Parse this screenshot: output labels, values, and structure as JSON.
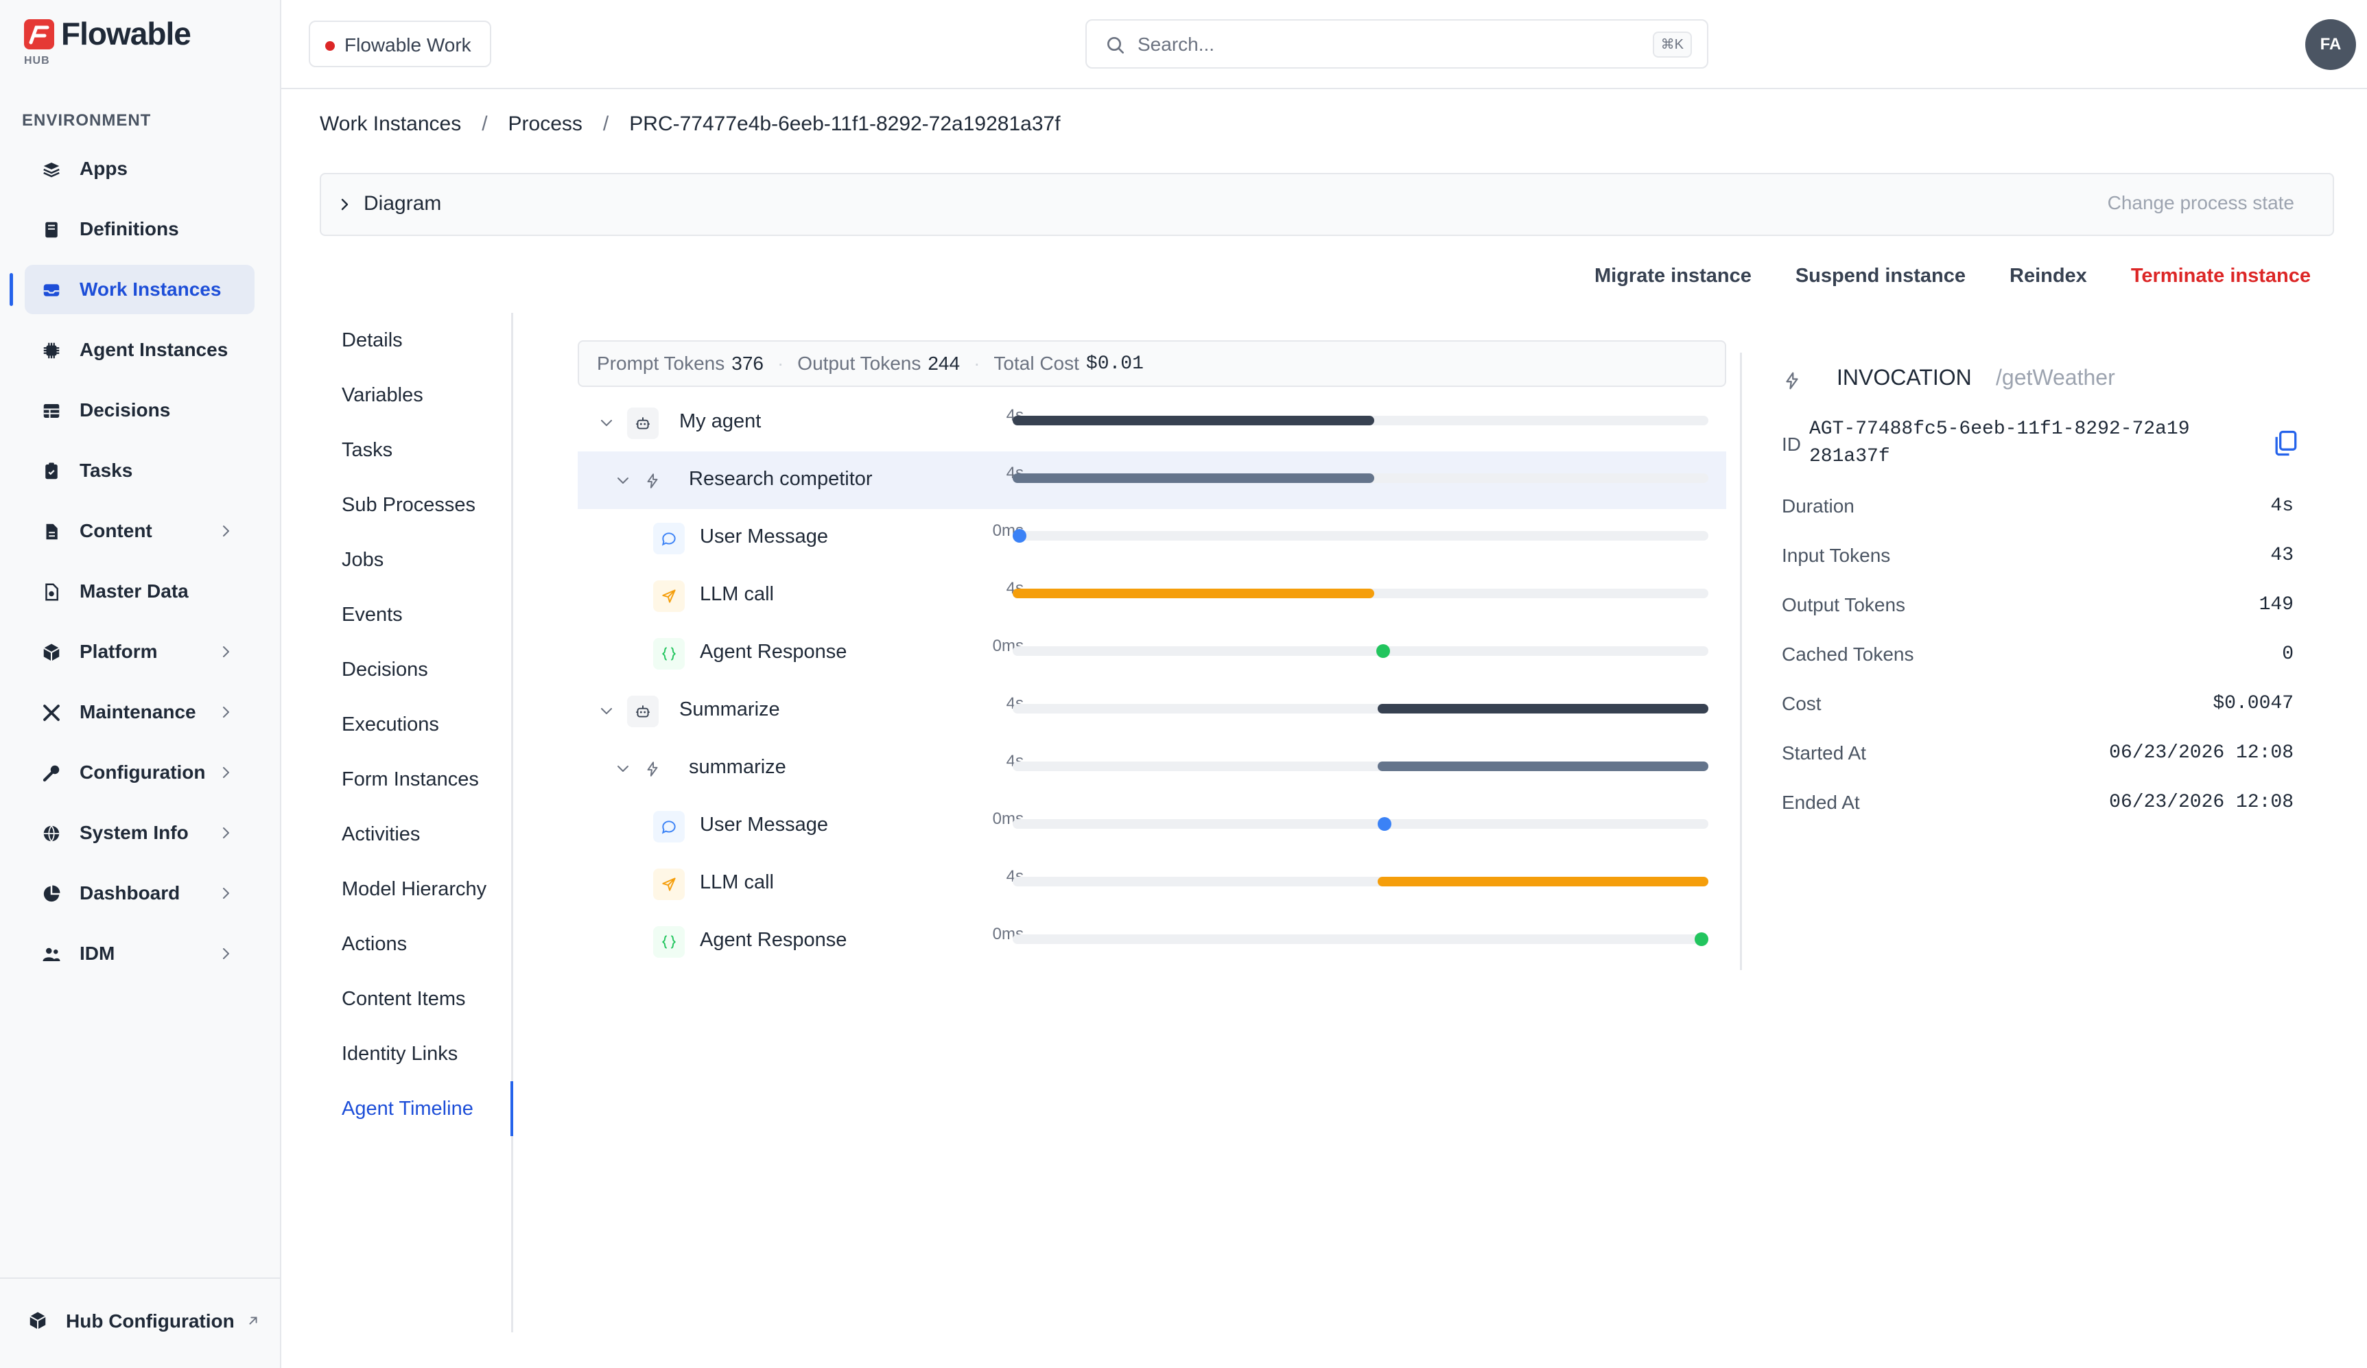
{
  "brand": {
    "name": "Flowable",
    "sub": "HUB"
  },
  "sidebar": {
    "section_label": "ENVIRONMENT",
    "items": [
      {
        "label": "Apps",
        "icon": "apps-icon"
      },
      {
        "label": "Definitions",
        "icon": "book-icon"
      },
      {
        "label": "Work Instances",
        "icon": "inbox-icon",
        "active": true
      },
      {
        "label": "Agent Instances",
        "icon": "chip-icon"
      },
      {
        "label": "Decisions",
        "icon": "table-icon"
      },
      {
        "label": "Tasks",
        "icon": "clipboard-icon"
      },
      {
        "label": "Content",
        "icon": "document-icon",
        "chevron": true
      },
      {
        "label": "Master Data",
        "icon": "file-icon"
      },
      {
        "label": "Platform",
        "icon": "cube-icon",
        "chevron": true
      },
      {
        "label": "Maintenance",
        "icon": "tools-icon",
        "chevron": true
      },
      {
        "label": "Configuration",
        "icon": "wrench-icon",
        "chevron": true
      },
      {
        "label": "System Info",
        "icon": "globe-icon",
        "chevron": true
      },
      {
        "label": "Dashboard",
        "icon": "pie-chart-icon",
        "chevron": true
      },
      {
        "label": "IDM",
        "icon": "users-icon",
        "chevron": true
      }
    ],
    "footer_label": "Hub Configuration"
  },
  "topbar": {
    "environment": "Flowable Work",
    "search_placeholder": "Search...",
    "search_shortcut": "⌘K",
    "avatar_initials": "FA"
  },
  "breadcrumb": [
    "Work Instances",
    "Process",
    "PRC-77477e4b-6eeb-11f1-8292-72a19281a37f"
  ],
  "diagram": {
    "label": "Diagram",
    "change_state": "Change process state"
  },
  "actions": {
    "migrate": "Migrate instance",
    "suspend": "Suspend instance",
    "reindex": "Reindex",
    "terminate": "Terminate instance"
  },
  "subnav": [
    "Details",
    "Variables",
    "Tasks",
    "Sub Processes",
    "Jobs",
    "Events",
    "Decisions",
    "Executions",
    "Form Instances",
    "Activities",
    "Model Hierarchy",
    "Actions",
    "Content Items",
    "Identity Links",
    "Agent Timeline"
  ],
  "subnav_active_index": 14,
  "summary": {
    "prompt_label": "Prompt Tokens",
    "prompt_value": "376",
    "output_label": "Output Tokens",
    "output_value": "244",
    "cost_label": "Total Cost",
    "cost_value": "$0.01"
  },
  "timeline": [
    {
      "level": 0,
      "toggle": true,
      "kind": "agent",
      "name": "My agent",
      "duration": "4s",
      "start": 0,
      "end": 0.52,
      "color": "#374151"
    },
    {
      "level": 1,
      "toggle": true,
      "kind": "invocation",
      "name": "Research competitor",
      "duration": "4s",
      "start": 0,
      "end": 0.52,
      "color": "#64748b",
      "selected": true
    },
    {
      "level": 2,
      "toggle": false,
      "kind": "message",
      "name": "User Message",
      "duration": "0ms",
      "point": 0.01,
      "color": "#3b82f6"
    },
    {
      "level": 2,
      "toggle": false,
      "kind": "llm",
      "name": "LLM call",
      "duration": "4s",
      "start": 0,
      "end": 0.52,
      "color": "#f59e0b"
    },
    {
      "level": 2,
      "toggle": false,
      "kind": "response",
      "name": "Agent Response",
      "duration": "0ms",
      "point": 0.533,
      "color": "#22c55e"
    },
    {
      "level": 0,
      "toggle": true,
      "kind": "agent",
      "name": "Summarize",
      "duration": "4s",
      "start": 0.525,
      "end": 1.0,
      "color": "#374151"
    },
    {
      "level": 1,
      "toggle": true,
      "kind": "invocation",
      "name": "summarize",
      "duration": "4s",
      "start": 0.525,
      "end": 1.0,
      "color": "#64748b"
    },
    {
      "level": 2,
      "toggle": false,
      "kind": "message",
      "name": "User Message",
      "duration": "0ms",
      "point": 0.535,
      "color": "#3b82f6"
    },
    {
      "level": 2,
      "toggle": false,
      "kind": "llm",
      "name": "LLM call",
      "duration": "4s",
      "start": 0.525,
      "end": 1.0,
      "color": "#f59e0b"
    },
    {
      "level": 2,
      "toggle": false,
      "kind": "response",
      "name": "Agent Response",
      "duration": "0ms",
      "point": 0.99,
      "color": "#22c55e"
    }
  ],
  "details": {
    "type": "INVOCATION",
    "path": "/getWeather",
    "id_label": "ID",
    "id_value": "AGT-77488fc5-6eeb-11f1-8292-72a19281a37f",
    "fields": [
      {
        "label": "Duration",
        "value": "4s"
      },
      {
        "label": "Input Tokens",
        "value": "43"
      },
      {
        "label": "Output Tokens",
        "value": "149"
      },
      {
        "label": "Cached Tokens",
        "value": "0"
      },
      {
        "label": "Cost",
        "value": "$0.0047"
      },
      {
        "label": "Started At",
        "value": "06/23/2026 12:08"
      },
      {
        "label": "Ended At",
        "value": "06/23/2026 12:08"
      }
    ]
  }
}
